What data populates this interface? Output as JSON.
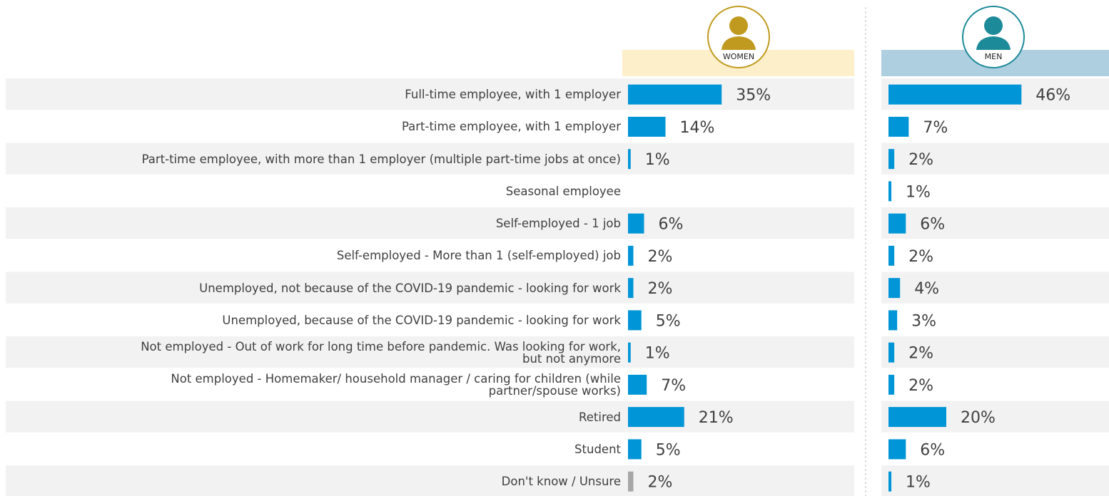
{
  "chart_data": {
    "type": "bar",
    "categories": [
      "Full-time employee, with 1 employer",
      "Part-time employee, with 1 employer",
      "Part-time employee, with more than 1 employer (multiple part-time jobs at once)",
      "Seasonal employee",
      "Self-employed - 1 job",
      "Self-employed - More than 1 (self-employed) job",
      "Unemployed, not because of the COVID-19 pandemic - looking for work",
      "Unemployed, because of the COVID-19 pandemic - looking for work",
      "Not employed - Out of work for long time before pandemic. Was looking for work,\nbut not anymore",
      "Not employed - Homemaker/ household manager / caring for children (while\npartner/spouse works)",
      "Retired",
      "Student",
      "Don't know / Unsure"
    ],
    "series": [
      {
        "name": "WOMEN",
        "color": "#0095d6",
        "header_color": "#fcefc9",
        "icon_color": "#c09a1f",
        "values": [
          35,
          14,
          1,
          null,
          6,
          2,
          2,
          5,
          1,
          7,
          21,
          5,
          2
        ],
        "value_labels": [
          "35%",
          "14%",
          "1%",
          null,
          "6%",
          "2%",
          "2%",
          "5%",
          "1%",
          "7%",
          "21%",
          "5%",
          "2%"
        ]
      },
      {
        "name": "MEN",
        "color": "#0095d6",
        "header_color": "#aecfdf",
        "icon_color": "#1d8a99",
        "values": [
          46,
          7,
          2,
          1,
          6,
          2,
          4,
          3,
          2,
          2,
          20,
          6,
          1
        ],
        "value_labels": [
          "46%",
          "7%",
          "2%",
          "1%",
          "6%",
          "2%",
          "4%",
          "3%",
          "2%",
          "2%",
          "20%",
          "6%",
          "1%"
        ]
      }
    ],
    "unsure_color": "#a6a6a6"
  }
}
